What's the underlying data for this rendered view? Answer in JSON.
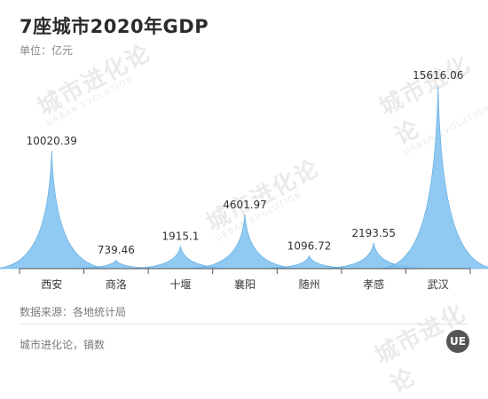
{
  "title": "7座城市2020年GDP",
  "unit": "单位：亿元",
  "source": "数据来源：各地统计局",
  "author": "城市进化论，镝数",
  "logo_text": "UE",
  "watermark": {
    "big": "城市进化论",
    "small": "URBAN EVOLUTION"
  },
  "colors": {
    "peak": "#7cc0ee",
    "peak_edge": "#5aa9e0",
    "axis": "#555555",
    "label": "#333333"
  },
  "chart_data": {
    "type": "area",
    "title": "7座城市2020年GDP",
    "ylabel": "单位：亿元",
    "categories": [
      "西安",
      "商洛",
      "十堰",
      "襄阳",
      "随州",
      "孝感",
      "武汉"
    ],
    "values": [
      10020.39,
      739.46,
      1915.1,
      4601.97,
      1096.72,
      2193.55,
      15616.06
    ],
    "value_labels": [
      "10020.39",
      "739.46",
      "1915.1",
      "4601.97",
      "1096.72",
      "2193.55",
      "15616.06"
    ],
    "ylim": [
      0,
      15616.06
    ],
    "grid": false
  }
}
